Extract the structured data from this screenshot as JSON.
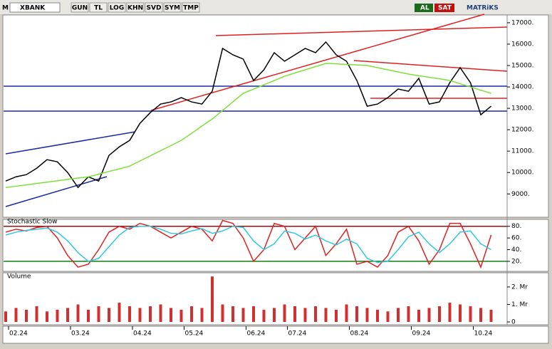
{
  "toolbar": {
    "logo": "M",
    "symbol": "XBANK",
    "buttons": [
      "GUN",
      "TL",
      "LOG",
      "KHN",
      "SVD",
      "SYM",
      "TMP"
    ],
    "buy": "AL",
    "sell": "SAT",
    "brand": "MATRiKS"
  },
  "chart_data": [
    {
      "type": "line",
      "ylim": [
        8010,
        17330
      ],
      "yticks": [
        {
          "value": 9000,
          "label": "9000."
        },
        {
          "value": 10000,
          "label": "10000."
        },
        {
          "value": 11000,
          "label": "11000."
        },
        {
          "value": 12000,
          "label": "12000."
        },
        {
          "value": 13000,
          "label": "13000."
        },
        {
          "value": 14000,
          "label": "14000."
        },
        {
          "value": 15000,
          "label": "15000."
        },
        {
          "value": 16000,
          "label": "16000."
        },
        {
          "value": 17000,
          "label": "17000."
        }
      ],
      "xticks": [
        {
          "value": 0,
          "label": "02.24"
        },
        {
          "value": 6,
          "label": "03.24"
        },
        {
          "value": 12,
          "label": "04.24"
        },
        {
          "value": 17,
          "label": "05.24"
        },
        {
          "value": 23,
          "label": "06.24"
        },
        {
          "value": 27,
          "label": "07.24"
        },
        {
          "value": 33,
          "label": "08.24"
        },
        {
          "value": 39,
          "label": "09.24"
        },
        {
          "value": 45,
          "label": "10.24"
        }
      ],
      "series": [
        {
          "color": "#000000",
          "values": [
            9600,
            9800,
            9900,
            10200,
            10600,
            10500,
            10000,
            9300,
            9800,
            9600,
            10800,
            11200,
            11500,
            12300,
            12800,
            13200,
            13300,
            13500,
            13300,
            13200,
            13800,
            15800,
            15500,
            15300,
            14300,
            14800,
            15600,
            15200,
            15500,
            15800,
            15600,
            16100,
            15500,
            15200,
            14300,
            13100,
            13200,
            13500,
            13900,
            13800,
            14400,
            13200,
            13300,
            14200,
            14900,
            14200,
            12700,
            13100
          ]
        },
        {
          "color": "#7fe03a",
          "values": [
            9300,
            9360,
            9420,
            9490,
            9550,
            9610,
            9680,
            9740,
            9800,
            9920,
            10050,
            10170,
            10300,
            10540,
            10780,
            11020,
            11260,
            11500,
            11830,
            12170,
            12500,
            12900,
            13300,
            13700,
            13900,
            14100,
            14300,
            14500,
            14650,
            14800,
            14950,
            15100,
            15080,
            15050,
            15030,
            15000,
            14900,
            14800,
            14700,
            14600,
            14520,
            14450,
            14380,
            14300,
            14150,
            14000,
            13850,
            13700
          ]
        }
      ]
    },
    {
      "type": "line",
      "title": "Stochastic Slow",
      "ylim": [
        4,
        87
      ],
      "yticks": [
        {
          "value": 20,
          "label": "20."
        },
        {
          "value": 40,
          "label": "40."
        },
        {
          "value": 60,
          "label": "60."
        },
        {
          "value": 80,
          "label": "80."
        }
      ],
      "series": [
        {
          "color": "#e02020",
          "values": [
            70,
            75,
            72,
            78,
            80,
            60,
            30,
            10,
            15,
            40,
            70,
            80,
            75,
            85,
            80,
            70,
            60,
            70,
            80,
            75,
            55,
            90,
            85,
            60,
            20,
            40,
            85,
            80,
            40,
            60,
            80,
            30,
            50,
            75,
            15,
            20,
            10,
            30,
            70,
            80,
            55,
            15,
            40,
            85,
            85,
            50,
            10,
            65
          ]
        },
        {
          "color": "#30c8e0",
          "values": [
            65,
            70,
            73,
            75,
            77,
            70,
            55,
            35,
            20,
            25,
            45,
            65,
            78,
            80,
            80,
            75,
            68,
            67,
            72,
            76,
            68,
            72,
            80,
            78,
            55,
            40,
            50,
            72,
            68,
            58,
            65,
            55,
            48,
            58,
            50,
            25,
            18,
            20,
            40,
            62,
            70,
            50,
            35,
            50,
            70,
            72,
            50,
            40
          ]
        }
      ]
    },
    {
      "type": "bar",
      "title": "Volume",
      "color": "#d03030",
      "ylim": [
        0,
        2.73
      ],
      "yticks": [
        0,
        {
          "value": 1,
          "label": "1. Mr"
        },
        {
          "value": 2,
          "label": "2. Mr"
        }
      ],
      "values": [
        0.6,
        0.8,
        0.7,
        0.9,
        0.6,
        0.7,
        0.8,
        1.0,
        0.7,
        0.9,
        0.8,
        1.1,
        0.9,
        0.8,
        0.9,
        1.0,
        0.8,
        0.7,
        0.9,
        0.8,
        2.6,
        1.0,
        0.9,
        0.8,
        0.9,
        0.7,
        0.8,
        1.0,
        0.9,
        0.8,
        0.9,
        0.8,
        0.7,
        1.0,
        0.9,
        0.8,
        0.7,
        0.6,
        0.8,
        0.9,
        0.7,
        0.8,
        0.9,
        1.1,
        1.0,
        0.9,
        0.8,
        0.7
      ]
    }
  ]
}
